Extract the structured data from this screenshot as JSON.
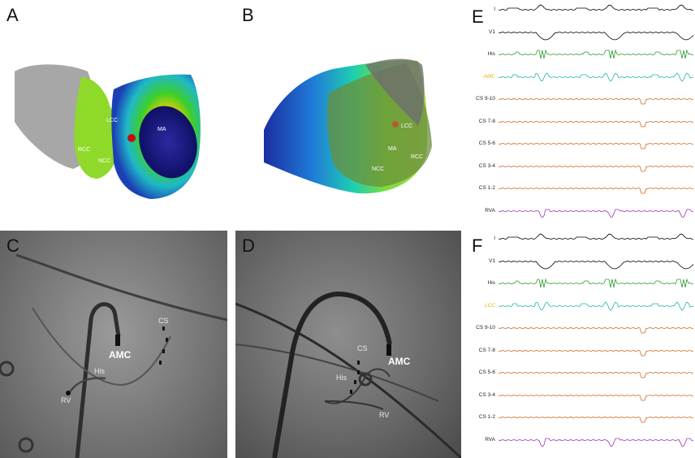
{
  "panels": {
    "A": {
      "letter": "A",
      "labels": {
        "lcc": "LCC",
        "rcc": "RCC",
        "ncc": "NCC",
        "ma": "MA"
      }
    },
    "B": {
      "letter": "B",
      "labels": {
        "lcc": "LCC",
        "ma": "MA",
        "rcc": "RCC",
        "ncc": "NCC"
      }
    },
    "C": {
      "letter": "C",
      "labels": {
        "cs": "CS",
        "amc": "AMC",
        "his": "His",
        "rv": "RV"
      }
    },
    "D": {
      "letter": "D",
      "labels": {
        "cs": "CS",
        "amc": "AMC",
        "his": "His",
        "rv": "RV"
      }
    },
    "E": {
      "letter": "E",
      "traces": [
        "I",
        "V1",
        "His",
        "AMC",
        "CS 9-10",
        "CS 7-8",
        "CS 5-6",
        "CS 3-4",
        "CS 1-2",
        "RVA"
      ]
    },
    "F": {
      "letter": "F",
      "traces": [
        "I",
        "V1",
        "His",
        "LCC",
        "CS 9-10",
        "CS 7-8",
        "CS 5-6",
        "CS 3-4",
        "CS 1-2",
        "RVA"
      ]
    }
  },
  "colors": {
    "surface": "#000000",
    "his": "#2e9a2e",
    "mapping": "#1fb8a0",
    "cs": "#cc6a22",
    "rva": "#9a2fb8",
    "mapping_label": "#e8b200"
  }
}
